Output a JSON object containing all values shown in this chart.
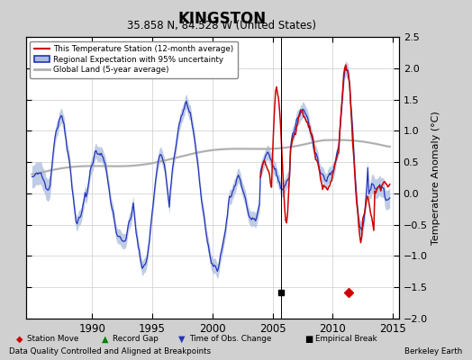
{
  "title": "KINGSTON",
  "subtitle": "35.858 N, 84.528 W (United States)",
  "ylabel": "Temperature Anomaly (°C)",
  "xlabel_note": "Data Quality Controlled and Aligned at Breakpoints",
  "credit": "Berkeley Earth",
  "ylim": [
    -2.0,
    2.5
  ],
  "xlim": [
    1984.5,
    2015.5
  ],
  "yticks": [
    -2,
    -1.5,
    -1,
    -0.5,
    0,
    0.5,
    1,
    1.5,
    2,
    2.5
  ],
  "xticks": [
    1990,
    1995,
    2000,
    2005,
    2010,
    2015
  ],
  "bg_color": "#d0d0d0",
  "plot_bg_color": "#ffffff",
  "red_line_color": "#cc0000",
  "blue_line_color": "#2233bb",
  "blue_fill_color": "#aabbdd",
  "gray_line_color": "#b0b0b0",
  "empirical_break_x": 2005.7,
  "station_move_x": 2011.3,
  "station_move_y": -1.58,
  "empirical_break_y": -1.58,
  "vertical_line_x": 2005.7
}
